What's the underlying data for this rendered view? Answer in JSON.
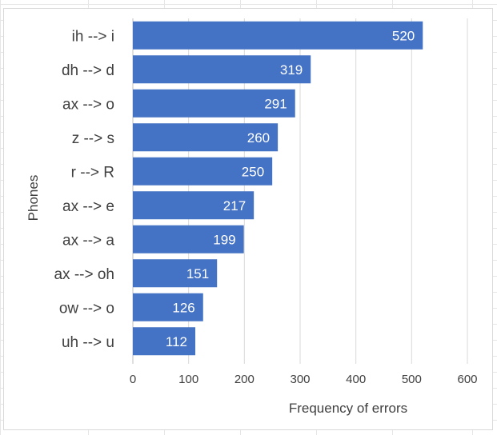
{
  "chart_data": {
    "type": "bar",
    "orientation": "horizontal",
    "categories": [
      "ih --> i",
      "dh --> d",
      "ax --> o",
      "z --> s",
      "r --> R",
      "ax --> e",
      "ax --> a",
      "ax --> oh",
      "ow --> o",
      "uh --> u"
    ],
    "values": [
      520,
      319,
      291,
      260,
      250,
      217,
      199,
      151,
      126,
      112
    ],
    "title": "",
    "xlabel": "Frequency of errors",
    "ylabel": "Phones",
    "xlim": [
      0,
      600
    ],
    "xticks": [
      0,
      100,
      200,
      300,
      400,
      500,
      600
    ],
    "grid": "vertical",
    "legend": "none",
    "bar_color": "#4472c4",
    "grid_color": "#d9d9d9"
  }
}
